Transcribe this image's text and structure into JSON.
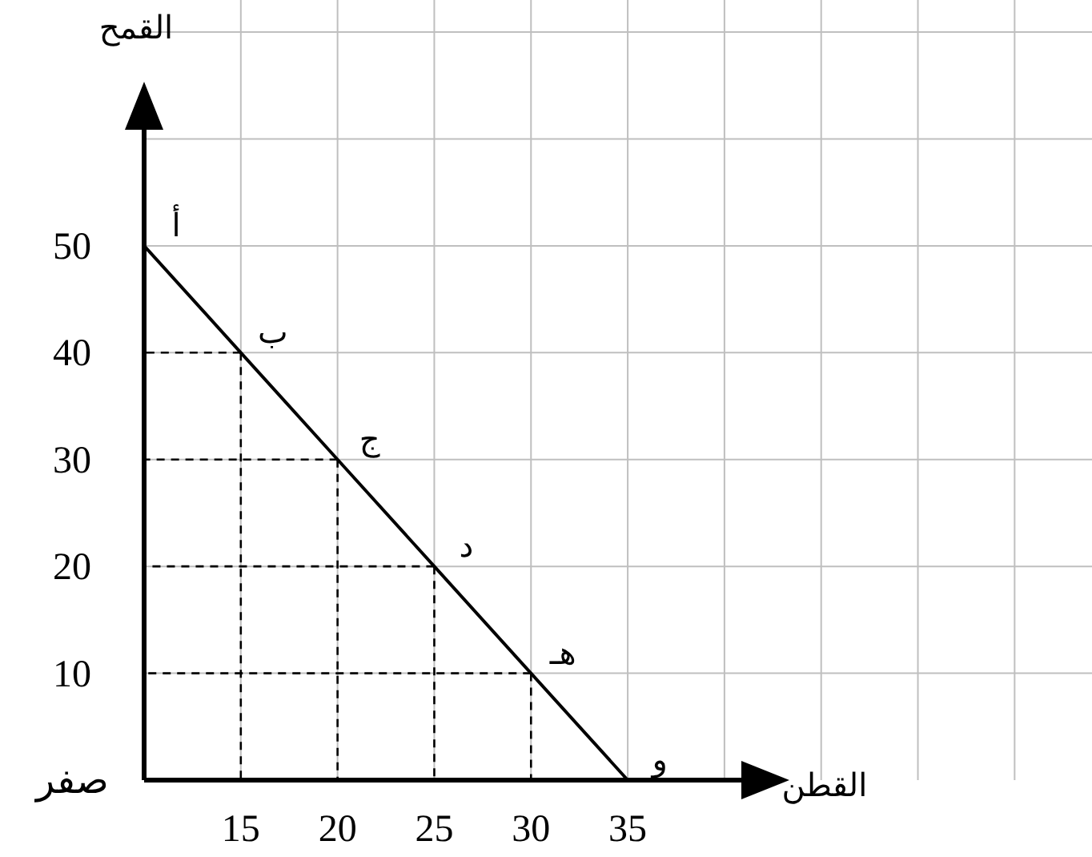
{
  "chart_data": {
    "type": "line",
    "xlabel": "القطن",
    "ylabel": "القمح",
    "x": [
      10,
      15,
      20,
      25,
      30,
      35
    ],
    "series": [
      {
        "color": "#000000",
        "values": [
          50,
          40,
          30,
          20,
          10,
          0
        ]
      }
    ],
    "xlim": [
      10,
      59
    ],
    "ylim": [
      0,
      73
    ],
    "xticks": [
      15,
      20,
      25,
      30,
      35,
      {
        "value": 40,
        "label": null
      },
      {
        "value": 45,
        "label": null
      },
      {
        "value": 50,
        "label": null
      },
      {
        "value": 55,
        "label": null
      }
    ],
    "yticks": [
      {
        "value": 0,
        "label": "صفر"
      },
      10,
      20,
      30,
      40,
      50,
      {
        "value": 60,
        "label": null
      },
      {
        "value": 70,
        "label": null
      }
    ],
    "grid": true,
    "annotations": [
      {
        "text": "أ",
        "x": 10,
        "y": 50
      },
      {
        "text": "ب",
        "x": 15,
        "y": 40
      },
      {
        "text": "ج",
        "x": 20,
        "y": 30
      },
      {
        "text": "د",
        "x": 25,
        "y": 20
      },
      {
        "text": "هـ",
        "x": 30,
        "y": 10
      },
      {
        "text": "و",
        "x": 35,
        "y": 0
      }
    ]
  }
}
